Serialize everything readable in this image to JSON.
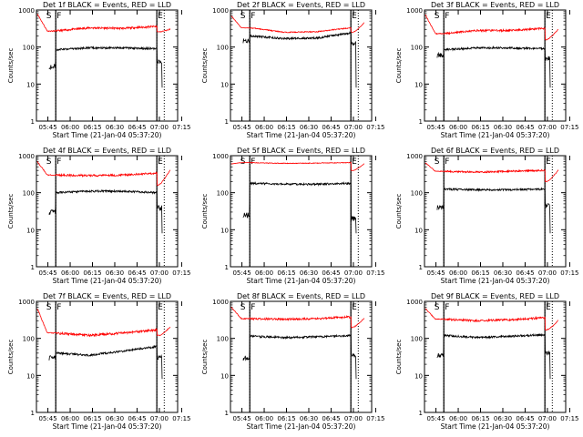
{
  "chart_data": [
    {
      "type": "line",
      "title": "Det 1f BLACK = Events, RED = LLD",
      "xlabel": "Start Time (21-Jan-04 05:37:20)",
      "ylabel": "Counts/sec",
      "y_scale": "log",
      "ylim": [
        1,
        1000
      ],
      "x_ticks": [
        "05:45",
        "06:00",
        "06:15",
        "06:30",
        "06:45",
        "07:00",
        "07:15"
      ],
      "y_ticks": [
        "1",
        "10",
        "100",
        "1000"
      ],
      "markers": [
        {
          "label": "S",
          "time_min": 6
        },
        {
          "label": "F",
          "time_min": 13
        },
        {
          "label": "E",
          "time_min": 81
        }
      ],
      "dotted_lines_min": [
        13,
        81,
        86
      ],
      "series": [
        {
          "name": "LLD",
          "color": "red",
          "start": 800,
          "level": [
            270,
            330,
            320,
            360
          ],
          "end": 260,
          "spike": 300,
          "noise": 0.06
        },
        {
          "name": "Events",
          "color": "black",
          "pre": 30,
          "level": [
            85,
            95,
            95,
            90
          ],
          "post": 40
        }
      ]
    },
    {
      "type": "line",
      "title": "Det 2f BLACK = Events, RED = LLD",
      "xlabel": "Start Time (21-Jan-04 05:37:20)",
      "ylabel": "Counts/sec",
      "y_scale": "log",
      "ylim": [
        1,
        1000
      ],
      "x_ticks": [
        "05:45",
        "06:00",
        "06:15",
        "06:30",
        "06:45",
        "07:00",
        "07:15"
      ],
      "y_ticks": [
        "1",
        "10",
        "100",
        "1000"
      ],
      "markers": [
        {
          "label": "S",
          "time_min": 6
        },
        {
          "label": "F",
          "time_min": 13
        },
        {
          "label": "E",
          "time_min": 81
        }
      ],
      "dotted_lines_min": [
        13,
        81,
        86
      ],
      "series": [
        {
          "name": "LLD",
          "color": "red",
          "start": 700,
          "level": [
            330,
            250,
            260,
            330
          ],
          "end": 250,
          "spike": 450,
          "noise": 0.03
        },
        {
          "name": "Events",
          "color": "black",
          "pre": 150,
          "level": [
            200,
            170,
            175,
            240
          ],
          "post": 130
        }
      ]
    },
    {
      "type": "line",
      "title": "Det 3f BLACK = Events, RED = LLD",
      "xlabel": "Start Time (21-Jan-04 05:37:20)",
      "ylabel": "Counts/sec",
      "y_scale": "log",
      "ylim": [
        1,
        1000
      ],
      "x_ticks": [
        "05:45",
        "06:00",
        "06:15",
        "06:30",
        "06:45",
        "07:00",
        "07:15"
      ],
      "y_ticks": [
        "1",
        "10",
        "100",
        "1000"
      ],
      "markers": [
        {
          "label": "S",
          "time_min": 6
        },
        {
          "label": "F",
          "time_min": 13
        },
        {
          "label": "E",
          "time_min": 81
        }
      ],
      "dotted_lines_min": [
        13,
        81,
        86
      ],
      "series": [
        {
          "name": "LLD",
          "color": "red",
          "start": 750,
          "level": [
            230,
            280,
            280,
            320
          ],
          "end": 160,
          "spike": 300,
          "noise": 0.06
        },
        {
          "name": "Events",
          "color": "black",
          "pre": 60,
          "level": [
            85,
            95,
            95,
            90
          ],
          "post": 50
        }
      ]
    },
    {
      "type": "line",
      "title": "Det 4f BLACK = Events, RED = LLD",
      "xlabel": "Start Time (21-Jan-04 05:37:20)",
      "ylabel": "Counts/sec",
      "y_scale": "log",
      "ylim": [
        1,
        1000
      ],
      "x_ticks": [
        "05:45",
        "06:00",
        "06:15",
        "06:30",
        "06:45",
        "07:00",
        "07:15"
      ],
      "y_ticks": [
        "1",
        "10",
        "100",
        "1000"
      ],
      "markers": [
        {
          "label": "S",
          "time_min": 6
        },
        {
          "label": "F",
          "time_min": 13
        },
        {
          "label": "E",
          "time_min": 81
        }
      ],
      "dotted_lines_min": [
        13,
        81,
        86
      ],
      "series": [
        {
          "name": "LLD",
          "color": "red",
          "start": 700,
          "level": [
            300,
            290,
            300,
            340
          ],
          "end": 160,
          "spike": 400,
          "noise": 0.06
        },
        {
          "name": "Events",
          "color": "black",
          "pre": 30,
          "level": [
            100,
            110,
            110,
            100
          ],
          "post": 40
        }
      ]
    },
    {
      "type": "line",
      "title": "Det 5f BLACK = Events, RED = LLD",
      "xlabel": "Start Time (21-Jan-04 05:37:20)",
      "ylabel": "Counts/sec",
      "y_scale": "log",
      "ylim": [
        1,
        1000
      ],
      "x_ticks": [
        "05:45",
        "06:00",
        "06:15",
        "06:30",
        "06:45",
        "07:00",
        "07:15"
      ],
      "y_ticks": [
        "1",
        "10",
        "100",
        "1000"
      ],
      "markers": [
        {
          "label": "S",
          "time_min": 6
        },
        {
          "label": "F",
          "time_min": 13
        },
        {
          "label": "E",
          "time_min": 81
        }
      ],
      "dotted_lines_min": [
        13,
        81,
        86
      ],
      "series": [
        {
          "name": "LLD",
          "color": "red",
          "start": 600,
          "level": [
            650,
            620,
            630,
            650
          ],
          "end": 400,
          "spike": 600,
          "noise": 0.02
        },
        {
          "name": "Events",
          "color": "black",
          "pre": 25,
          "level": [
            180,
            170,
            170,
            180
          ],
          "post": 20
        }
      ]
    },
    {
      "type": "line",
      "title": "Det 6f BLACK = Events, RED = LLD",
      "xlabel": "Start Time (21-Jan-04 05:37:20)",
      "ylabel": "Counts/sec",
      "y_scale": "log",
      "ylim": [
        1,
        1000
      ],
      "x_ticks": [
        "05:45",
        "06:00",
        "06:15",
        "06:30",
        "06:45",
        "07:00",
        "07:15"
      ],
      "y_ticks": [
        "1",
        "10",
        "100",
        "1000"
      ],
      "markers": [
        {
          "label": "S",
          "time_min": 6
        },
        {
          "label": "F",
          "time_min": 13
        },
        {
          "label": "E",
          "time_min": 81
        }
      ],
      "dotted_lines_min": [
        13,
        81,
        86
      ],
      "series": [
        {
          "name": "LLD",
          "color": "red",
          "start": 650,
          "level": [
            380,
            360,
            380,
            400
          ],
          "end": 200,
          "spike": 400,
          "noise": 0.05
        },
        {
          "name": "Events",
          "color": "black",
          "pre": 40,
          "level": [
            125,
            120,
            120,
            125
          ],
          "post": 45
        }
      ]
    },
    {
      "type": "line",
      "title": "Det 7f BLACK = Events, RED = LLD",
      "xlabel": "Start Time (21-Jan-04 05:37:20)",
      "ylabel": "Counts/sec",
      "y_scale": "log",
      "ylim": [
        1,
        1000
      ],
      "x_ticks": [
        "05:45",
        "06:00",
        "06:15",
        "06:30",
        "06:45",
        "07:00",
        "07:15"
      ],
      "y_ticks": [
        "1",
        "10",
        "100",
        "1000"
      ],
      "markers": [
        {
          "label": "S",
          "time_min": 6
        },
        {
          "label": "F",
          "time_min": 13
        },
        {
          "label": "E",
          "time_min": 81
        }
      ],
      "dotted_lines_min": [
        13,
        81,
        86
      ],
      "series": [
        {
          "name": "LLD",
          "color": "red",
          "start": 650,
          "level": [
            140,
            120,
            140,
            170
          ],
          "end": 120,
          "spike": 200,
          "noise": 0.07
        },
        {
          "name": "Events",
          "color": "black",
          "pre": 30,
          "level": [
            40,
            35,
            45,
            60
          ],
          "post": 30
        }
      ]
    },
    {
      "type": "line",
      "title": "Det 8f BLACK = Events, RED = LLD",
      "xlabel": "Start Time (21-Jan-04 05:37:20)",
      "ylabel": "Counts/sec",
      "y_scale": "log",
      "ylim": [
        1,
        1000
      ],
      "x_ticks": [
        "05:45",
        "06:00",
        "06:15",
        "06:30",
        "06:45",
        "07:00",
        "07:15"
      ],
      "y_ticks": [
        "1",
        "10",
        "100",
        "1000"
      ],
      "markers": [
        {
          "label": "S",
          "time_min": 6
        },
        {
          "label": "F",
          "time_min": 13
        },
        {
          "label": "E",
          "time_min": 81
        }
      ],
      "dotted_lines_min": [
        13,
        81,
        86
      ],
      "series": [
        {
          "name": "LLD",
          "color": "red",
          "start": 700,
          "level": [
            340,
            330,
            340,
            380
          ],
          "end": 200,
          "spike": 350,
          "noise": 0.06
        },
        {
          "name": "Events",
          "color": "black",
          "pre": 30,
          "level": [
            115,
            105,
            110,
            120
          ],
          "post": 35
        }
      ]
    },
    {
      "type": "line",
      "title": "Det 9f BLACK = Events, RED = LLD",
      "xlabel": "Start Time (21-Jan-04 05:37:20)",
      "ylabel": "Counts/sec",
      "y_scale": "log",
      "ylim": [
        1,
        1000
      ],
      "x_ticks": [
        "05:45",
        "06:00",
        "06:15",
        "06:30",
        "06:45",
        "07:00",
        "07:15"
      ],
      "y_ticks": [
        "1",
        "10",
        "100",
        "1000"
      ],
      "markers": [
        {
          "label": "S",
          "time_min": 6
        },
        {
          "label": "F",
          "time_min": 13
        },
        {
          "label": "E",
          "time_min": 81
        }
      ],
      "dotted_lines_min": [
        13,
        81,
        86
      ],
      "series": [
        {
          "name": "LLD",
          "color": "red",
          "start": 650,
          "level": [
            330,
            300,
            320,
            360
          ],
          "end": 170,
          "spike": 300,
          "noise": 0.06
        },
        {
          "name": "Events",
          "color": "black",
          "pre": 35,
          "level": [
            120,
            105,
            115,
            125
          ],
          "post": 40
        }
      ]
    }
  ]
}
